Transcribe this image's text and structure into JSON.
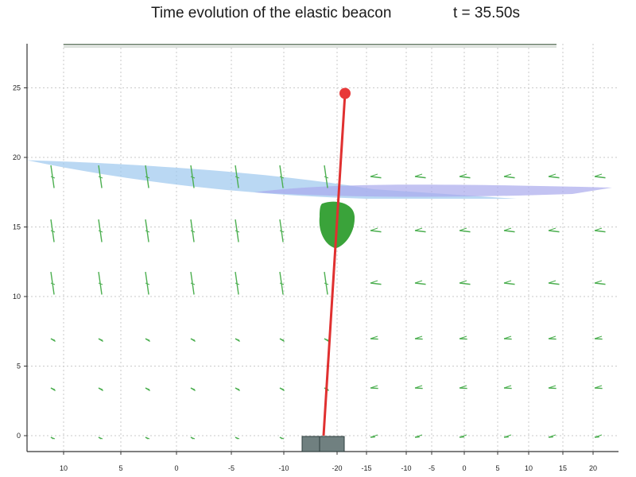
{
  "header": {
    "title": "Time evolution of the elastic beacon",
    "time_label": "t = 35.50s"
  },
  "chart_data": {
    "type": "scatter",
    "title": "Time evolution of the elastic beacon",
    "annotation": "t = 35.50s",
    "xlabel": "",
    "ylabel": "",
    "ylim": [
      -1,
      28
    ],
    "grid": true,
    "y_ticks": [
      "0",
      "5",
      "10",
      "15",
      "20",
      "25"
    ],
    "x_tick_labels": [
      "10",
      "5",
      "0",
      "-5",
      "-10",
      "-20",
      "-15",
      "-10",
      "-5",
      "0",
      "5",
      "10",
      "15",
      "20"
    ],
    "beacon": {
      "base": {
        "x": 412,
        "y": 0
      },
      "top": {
        "x": 434,
        "y": 24.6
      },
      "float_height": 15.3
    },
    "water_surface_height": {
      "left": 19.8,
      "right": 17.8
    },
    "colors": {
      "beacon_line": "#e03030",
      "beacon_tip": "#e83a3a",
      "float": "#3aa33a",
      "base_block": "#708080",
      "water_surface": "#9cc8ee",
      "water_surface_far": "#a9a9ec",
      "velocity_arrows": "#4caf50",
      "grid": "#c9c9c9"
    }
  }
}
